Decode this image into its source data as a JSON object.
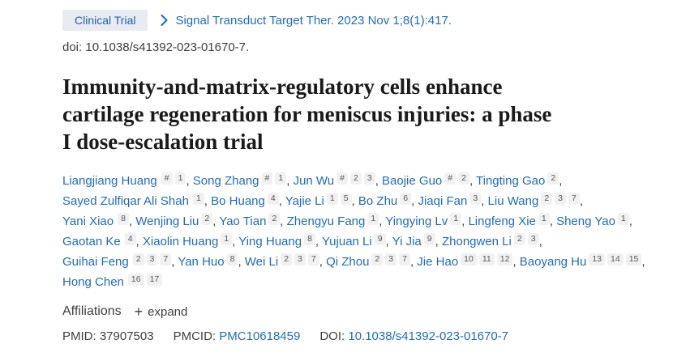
{
  "badge": {
    "label": "Clinical Trial"
  },
  "citation": {
    "journal": "Signal Transduct Target Ther. 2023 Nov 1;8(1):417."
  },
  "doi_line": "doi: 10.1038/s41392-023-01670-7.",
  "title": {
    "lines": [
      "Immunity-and-matrix-regulatory cells enhance",
      "cartilage regeneration for meniscus injuries: a phase",
      "I dose-escalation trial"
    ]
  },
  "author_lines": [
    [
      {
        "name": "Liangjiang Huang",
        "sups": [
          "#",
          "1"
        ]
      },
      {
        "name": "Song Zhang",
        "sups": [
          "#",
          "1"
        ]
      },
      {
        "name": "Jun Wu",
        "sups": [
          "#",
          "2",
          "3"
        ]
      },
      {
        "name": "Baojie Guo",
        "sups": [
          "#",
          "2"
        ]
      },
      {
        "name": "Tingting Gao",
        "sups": [
          "2"
        ]
      }
    ],
    [
      {
        "name": "Sayed Zulfiqar Ali Shah",
        "sups": [
          "1"
        ]
      },
      {
        "name": "Bo Huang",
        "sups": [
          "4"
        ]
      },
      {
        "name": "Yajie Li",
        "sups": [
          "1",
          "5"
        ]
      },
      {
        "name": "Bo Zhu",
        "sups": [
          "6"
        ]
      },
      {
        "name": "Jiaqi Fan",
        "sups": [
          "3"
        ]
      },
      {
        "name": "Liu Wang",
        "sups": [
          "2",
          "3",
          "7"
        ]
      }
    ],
    [
      {
        "name": "Yani Xiao",
        "sups": [
          "8"
        ]
      },
      {
        "name": "Wenjing Liu",
        "sups": [
          "2"
        ]
      },
      {
        "name": "Yao Tian",
        "sups": [
          "2"
        ]
      },
      {
        "name": "Zhengyu Fang",
        "sups": [
          "1"
        ]
      },
      {
        "name": "Yingying Lv",
        "sups": [
          "1"
        ]
      },
      {
        "name": "Lingfeng Xie",
        "sups": [
          "1"
        ]
      },
      {
        "name": "Sheng Yao",
        "sups": [
          "1"
        ]
      }
    ],
    [
      {
        "name": "Gaotan Ke",
        "sups": [
          "4"
        ]
      },
      {
        "name": "Xiaolin Huang",
        "sups": [
          "1"
        ]
      },
      {
        "name": "Ying Huang",
        "sups": [
          "8"
        ]
      },
      {
        "name": "Yujuan Li",
        "sups": [
          "9"
        ]
      },
      {
        "name": "Yi Jia",
        "sups": [
          "9"
        ]
      },
      {
        "name": "Zhongwen Li",
        "sups": [
          "2",
          "3"
        ]
      }
    ],
    [
      {
        "name": "Guihai Feng",
        "sups": [
          "2",
          "3",
          "7"
        ]
      },
      {
        "name": "Yan Huo",
        "sups": [
          "8"
        ]
      },
      {
        "name": "Wei Li",
        "sups": [
          "2",
          "3",
          "7"
        ]
      },
      {
        "name": "Qi Zhou",
        "sups": [
          "2",
          "3",
          "7"
        ]
      },
      {
        "name": "Jie Hao",
        "sups": [
          "10",
          "11",
          "12"
        ]
      },
      {
        "name": "Baoyang Hu",
        "sups": [
          "13",
          "14",
          "15"
        ]
      }
    ],
    [
      {
        "name": "Hong Chen",
        "sups": [
          "16",
          "17"
        ]
      }
    ]
  ],
  "affiliations": {
    "label": "Affiliations",
    "expand_icon": "+",
    "expand_label": "expand"
  },
  "identifiers": {
    "pmid_label": "PMID:",
    "pmid_value": "37907503",
    "pmcid_label": "PMCID:",
    "pmcid_value": "PMC10618459",
    "doi_label": "DOI:",
    "doi_value": "10.1038/s41392-023-01670-7"
  },
  "colors": {
    "link_blue": "#1f6cbe",
    "badge_bg": "#e8ecf2",
    "badge_text": "#1f5fa8",
    "sup_bg": "#f1f1f2",
    "sup_text": "#595959",
    "text_dark": "#3e3e3e",
    "title_color": "#1a1a1a"
  }
}
